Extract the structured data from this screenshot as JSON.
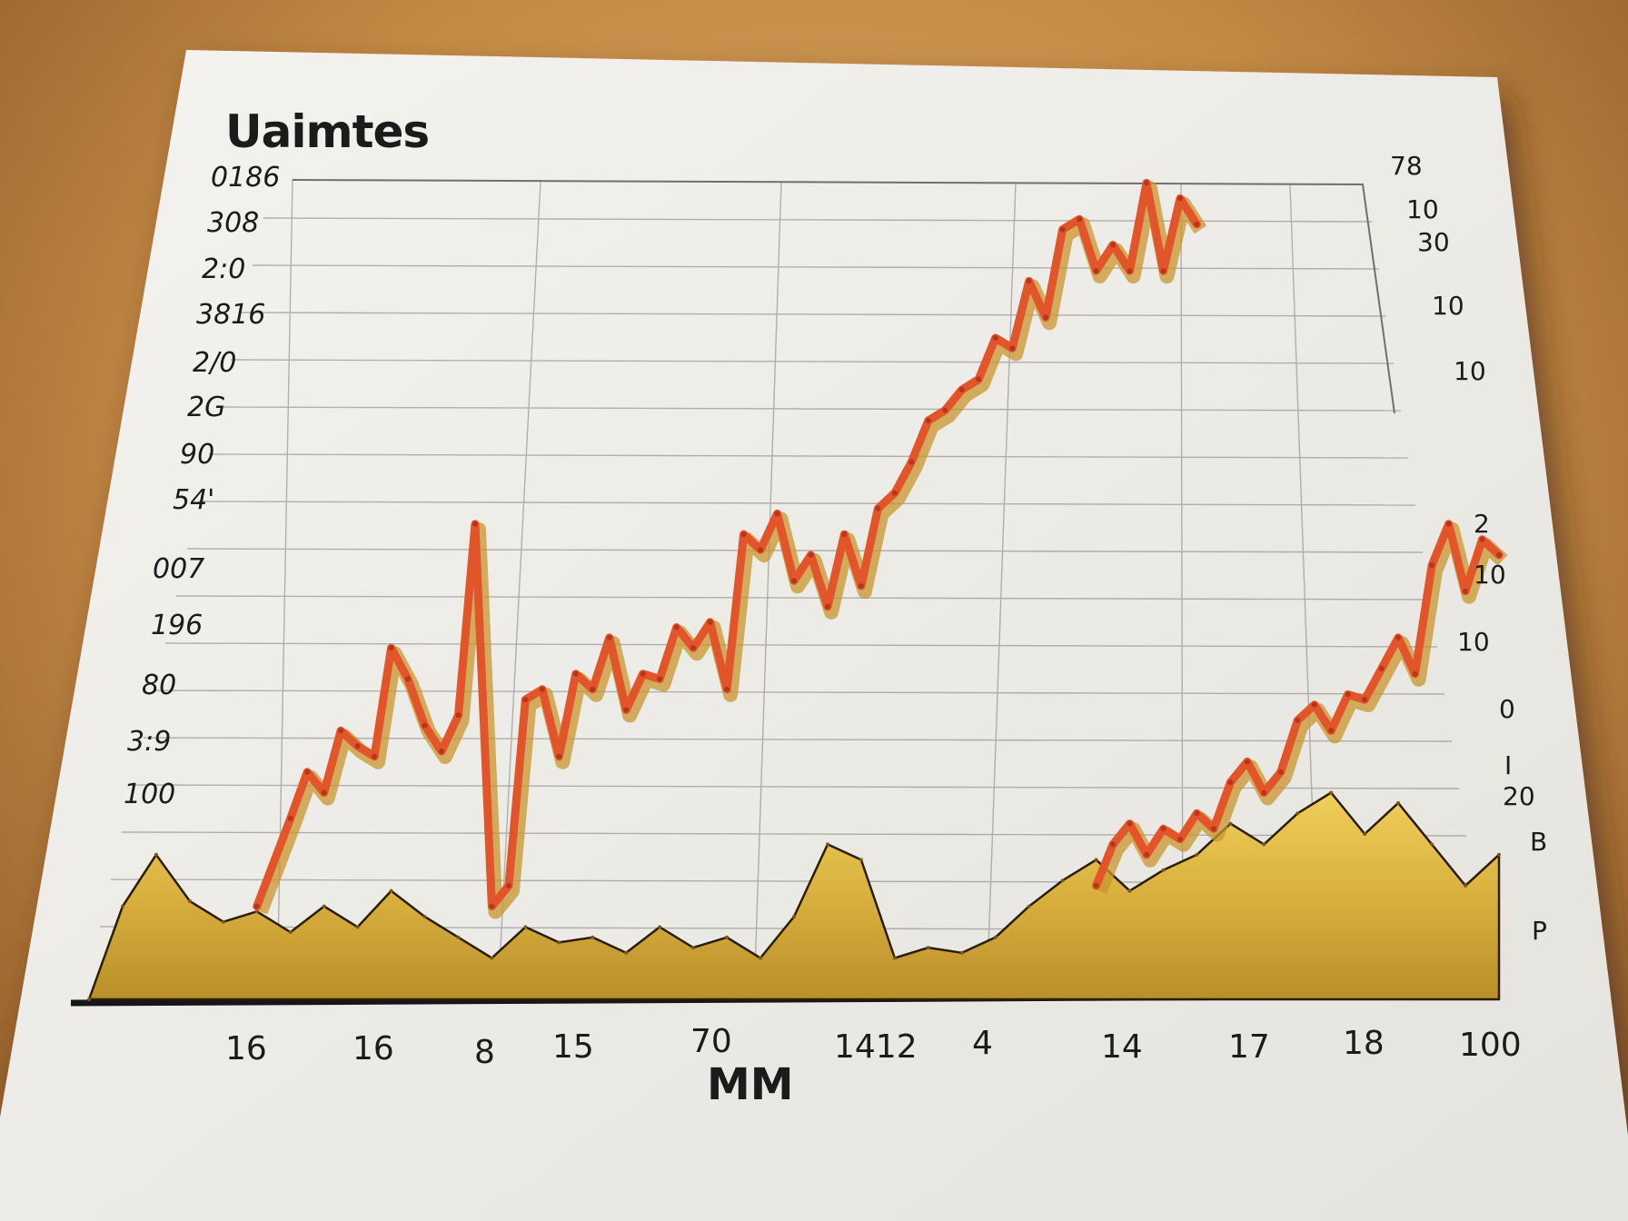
{
  "chart_data": {
    "type": "area",
    "title": "Uaimtes",
    "xlabel": "MM",
    "ylabel": "",
    "y_tick_labels_left": [
      "0186",
      "308",
      "2:0",
      "3816",
      "2/0",
      "2G",
      "90",
      "54'",
      "007",
      "196",
      "80",
      "3:9",
      "100"
    ],
    "y_tick_labels_right": [
      "78",
      "10",
      "30",
      "10",
      "10",
      "2",
      "10",
      "10",
      "0",
      "I",
      "20",
      "B",
      "P"
    ],
    "x_tick_labels": [
      "16",
      "16",
      "8",
      "15",
      "70",
      "1412",
      "4",
      "14",
      "17",
      "18",
      "100"
    ],
    "grid": true,
    "series": [
      {
        "style": "area",
        "color": "#d9b23a",
        "x": [
          0,
          2,
          4,
          6,
          8,
          10,
          12,
          14,
          16,
          18,
          20,
          22,
          24,
          26,
          28,
          30,
          32,
          34,
          36,
          38,
          40,
          42,
          44,
          46,
          48,
          50,
          52,
          54,
          56,
          58,
          60,
          62,
          64,
          66,
          68,
          70,
          72,
          74,
          76,
          78,
          80,
          82,
          84
        ],
        "values": [
          0,
          18,
          28,
          19,
          15,
          17,
          13,
          18,
          14,
          21,
          16,
          12,
          8,
          14,
          11,
          12,
          9,
          14,
          10,
          12,
          8,
          16,
          30,
          27,
          8,
          10,
          9,
          12,
          18,
          23,
          27,
          21,
          25,
          28,
          34,
          30,
          36,
          40,
          32,
          38,
          30,
          22,
          28
        ]
      },
      {
        "style": "line",
        "color": "#e2542a",
        "x": [
          10,
          12,
          13,
          14,
          15,
          16,
          17,
          18,
          19,
          20,
          21,
          22,
          23,
          24,
          25,
          26,
          27,
          28,
          29,
          30,
          31,
          32,
          33,
          34,
          35,
          36,
          37,
          38,
          39,
          40,
          41,
          42,
          43,
          44,
          45,
          46,
          47,
          48,
          49,
          50,
          51,
          52,
          53,
          54,
          55,
          56,
          57,
          58,
          59,
          60,
          61,
          62,
          63,
          64,
          65,
          66
        ],
        "values": [
          18,
          35,
          44,
          40,
          52,
          49,
          47,
          68,
          62,
          53,
          48,
          55,
          92,
          18,
          22,
          58,
          60,
          47,
          63,
          60,
          70,
          56,
          63,
          62,
          72,
          68,
          73,
          60,
          90,
          87,
          94,
          81,
          86,
          76,
          90,
          80,
          95,
          98,
          104,
          112,
          114,
          118,
          120,
          128,
          126,
          139,
          132,
          149,
          151,
          141,
          146,
          141,
          158,
          141,
          155,
          150
        ]
      },
      {
        "style": "line",
        "color": "#e2542a",
        "x": [
          60,
          61,
          62,
          63,
          64,
          65,
          66,
          67,
          68,
          69,
          70,
          71,
          72,
          73,
          74,
          75,
          76,
          77,
          78,
          79,
          80,
          81,
          82,
          83,
          84
        ],
        "values": [
          22,
          30,
          34,
          28,
          33,
          31,
          36,
          33,
          42,
          46,
          40,
          44,
          54,
          57,
          52,
          59,
          58,
          64,
          70,
          63,
          84,
          92,
          79,
          89,
          86
        ]
      }
    ]
  }
}
